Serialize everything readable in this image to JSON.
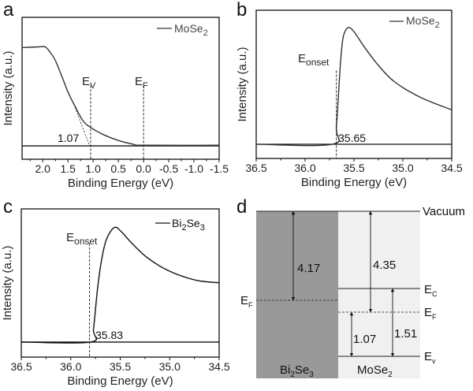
{
  "chart_data": [
    {
      "panel": "a",
      "type": "line",
      "xlabel": "Binding Energy (eV)",
      "ylabel": "Intensity (a.u.)",
      "xlim": [
        2.41,
        -1.5
      ],
      "ylim": [
        -0.104,
        1.0
      ],
      "xticks": [
        "2.0",
        "1.5",
        "1.0",
        "0.5",
        "0.0",
        "-0.5",
        "-1.0",
        "-1.5"
      ],
      "xtick_values": [
        2.0,
        1.5,
        1.0,
        0.5,
        0.0,
        -0.5,
        -1.0,
        -1.5
      ],
      "minor_step": 0.25,
      "grid": false,
      "legend": {
        "base": "MoSe",
        "sub": "2",
        "placement": "top-right"
      },
      "series": [
        {
          "name": "MoSe2",
          "color": "#333333",
          "x": [
            2.41,
            2.1,
            1.95,
            1.85,
            1.75,
            1.6,
            1.5,
            1.35,
            1.2,
            1.05,
            0.8,
            0.5,
            0.2,
            0.0,
            -1.5
          ],
          "y": [
            0.765,
            0.77,
            0.77,
            0.726,
            0.665,
            0.52,
            0.42,
            0.3,
            0.195,
            0.143,
            0.088,
            0.042,
            0.012,
            0.005,
            0.005
          ]
        }
      ],
      "annotations": {
        "ev_label": {
          "base": "E",
          "sub": "V"
        },
        "ef_label": {
          "base": "E",
          "sub": "F"
        },
        "ev_position": 1.05,
        "ef_position": 0.0,
        "value_label": "1.07",
        "extrapolation_value": 1.07
      }
    },
    {
      "panel": "b",
      "type": "line",
      "xlabel": "Binding Energy (eV)",
      "ylabel": "Intensity (a.u.)",
      "xlim": [
        36.5,
        34.5
      ],
      "ylim": [
        -0.106,
        1.0
      ],
      "xticks": [
        "36.5",
        "36.0",
        "35.5",
        "35.0",
        "34.5"
      ],
      "xtick_values": [
        36.5,
        36.0,
        35.5,
        35.0,
        34.5
      ],
      "minor_step": 0.25,
      "grid": false,
      "legend": {
        "base": "MoSe",
        "sub": "2",
        "placement": "top-right"
      },
      "series": [
        {
          "name": "MoSe2",
          "color": "#333333",
          "x": [
            36.5,
            35.72,
            35.68,
            35.64,
            35.61,
            35.56,
            35.5,
            35.41,
            35.27,
            35.09,
            34.82,
            34.5
          ],
          "y": [
            0,
            0,
            0.135,
            0.586,
            0.8,
            0.87,
            0.84,
            0.743,
            0.606,
            0.469,
            0.35,
            0.257
          ]
        }
      ],
      "annotations": {
        "onset_label": {
          "base": "E",
          "sub": "onset"
        },
        "onset_position": 35.68,
        "value_label": "35.65"
      }
    },
    {
      "panel": "c",
      "type": "line",
      "xlabel": "Binding Energy (eV)",
      "ylabel": "Intensity (a.u.)",
      "xlim": [
        36.5,
        34.5
      ],
      "ylim": [
        -0.113,
        1.0
      ],
      "xticks": [
        "36.5",
        "36.0",
        "35.5",
        "35.0",
        "34.5"
      ],
      "xtick_values": [
        36.5,
        36.0,
        35.5,
        35.0,
        34.5
      ],
      "minor_step": 0.25,
      "grid": false,
      "legend": {
        "base": "Bi",
        "sub": "2",
        "base2": "Se",
        "sub2": "3",
        "placement": "top-right"
      },
      "series": [
        {
          "name": "Bi2Se3",
          "color": "#111111",
          "x": [
            36.5,
            35.8,
            35.77,
            35.73,
            35.69,
            35.64,
            35.56,
            35.49,
            35.38,
            35.22,
            35.01,
            34.74,
            34.5
          ],
          "y": [
            0,
            0,
            0.1,
            0.395,
            0.61,
            0.77,
            0.86,
            0.83,
            0.74,
            0.63,
            0.535,
            0.465,
            0.445
          ]
        }
      ],
      "annotations": {
        "onset_label": {
          "base": "E",
          "sub": "onset"
        },
        "onset_position": 35.81,
        "value_label": "35.83"
      }
    }
  ],
  "diagram": {
    "panel": "d",
    "vacuum_label": "Vacuum",
    "bi2se3": {
      "base": "Bi",
      "sub": "2",
      "base2": "Se",
      "sub2": "3",
      "color": "#999999",
      "ef_label": {
        "base": "E",
        "sub": "F"
      },
      "work_function": "4.17"
    },
    "mose2": {
      "base": "MoSe",
      "sub": "2",
      "color": "#f0f0f0",
      "ec_label": {
        "base": "E",
        "sub": "C"
      },
      "ef_label": {
        "base": "E",
        "sub": "F"
      },
      "ev_label": {
        "base": "E",
        "sub": "v"
      },
      "work_function": "4.35",
      "ef_minus_ev": "1.07",
      "ec_minus_ev": "1.51"
    }
  }
}
